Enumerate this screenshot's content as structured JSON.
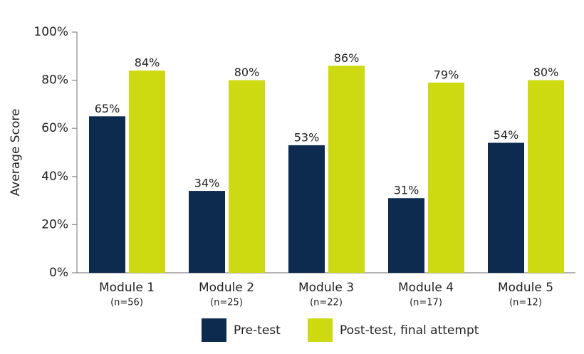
{
  "chart_data": {
    "type": "bar",
    "ylabel": "Average Score",
    "categories": [
      "Module 1",
      "Module 2",
      "Module 3",
      "Module 4",
      "Module 5"
    ],
    "subcategories": [
      "(n=56)",
      "(n=25)",
      "(n=22)",
      "(n=17)",
      "(n=12)"
    ],
    "series": [
      {
        "name": "Pre-test",
        "color": "#0c2b4e",
        "values": [
          65,
          34,
          53,
          31,
          54
        ],
        "value_labels": [
          "65%",
          "34%",
          "53%",
          "31%",
          "54%"
        ]
      },
      {
        "name": "Post-test, final attempt",
        "color": "#cdda12",
        "values": [
          84,
          80,
          86,
          79,
          80
        ],
        "value_labels": [
          "84%",
          "80%",
          "86%",
          "79%",
          "80%"
        ]
      }
    ],
    "ylim": [
      0,
      100
    ],
    "yticks": [
      {
        "value": 0,
        "label": "0%"
      },
      {
        "value": 20,
        "label": "20%"
      },
      {
        "value": 40,
        "label": "40%"
      },
      {
        "value": 60,
        "label": "60%"
      },
      {
        "value": 80,
        "label": "80%"
      },
      {
        "value": 100,
        "label": "100%"
      }
    ]
  }
}
